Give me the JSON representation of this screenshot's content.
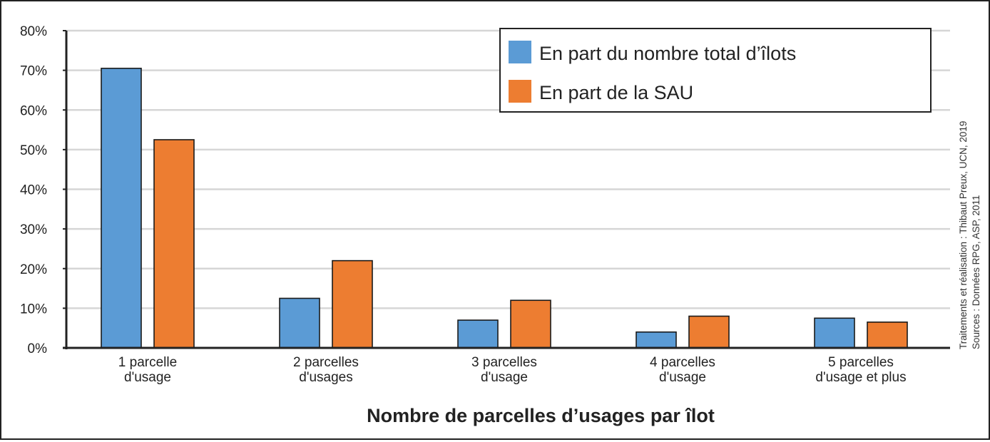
{
  "chart_data": {
    "type": "bar",
    "categories": [
      [
        "1 parcelle",
        "d'usage"
      ],
      [
        "2 parcelles",
        "d'usages"
      ],
      [
        "3 parcelles",
        "d'usage"
      ],
      [
        "4 parcelles",
        "d'usage"
      ],
      [
        "5 parcelles",
        "d'usage et plus"
      ]
    ],
    "series": [
      {
        "name": "En part du nombre total d’îlots",
        "color": "#5b9bd5",
        "values": [
          70.5,
          12.5,
          7,
          4,
          7.5
        ]
      },
      {
        "name": "En part de la SAU",
        "color": "#ed7d31",
        "values": [
          52.5,
          22,
          12,
          8,
          6.5
        ]
      }
    ],
    "xlabel": "Nombre de parcelles d’usages par îlot",
    "ylabel": "",
    "ylim": [
      0,
      80
    ],
    "yticks": [
      "0%",
      "10%",
      "20%",
      "30%",
      "40%",
      "50%",
      "60%",
      "70%",
      "80%"
    ],
    "grid": true,
    "legend_position": "top-right",
    "source_lines": [
      "Traitements et réalisation : Thibaut Preux, UCN, 2019",
      "Sources : Données RPG, ASP, 2011"
    ]
  }
}
